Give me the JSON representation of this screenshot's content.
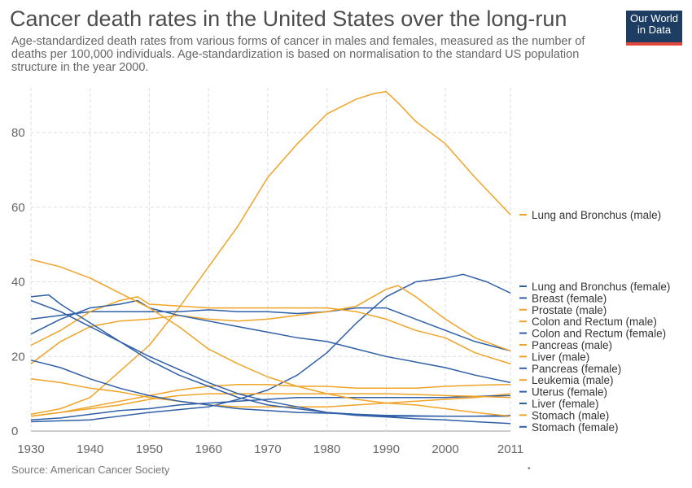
{
  "header": {
    "title": "Cancer death rates in the United States over the long-run",
    "subtitle": "Age-standardized death rates from various forms of cancer in males and females, measured as the number of deaths per 100,000 individuals. Age-standardization is based on normalisation to the standard US population structure in the year 2000.",
    "logo_line1": "Our World",
    "logo_line2": "in Data"
  },
  "footer": {
    "source": "Source: American Cancer Society",
    "dot": "•"
  },
  "colors": {
    "orange": "#f0a427",
    "blue": "#2f5fa7",
    "grid": "#dddddd",
    "logo_bg": "#1d3d63",
    "logo_bar": "#e0463b"
  },
  "chart_data": {
    "type": "line",
    "title": "Cancer death rates in the United States over the long-run",
    "xlim": [
      1930,
      2011
    ],
    "ylim": [
      0,
      92
    ],
    "x_ticks": [
      "1930",
      "1940",
      "1950",
      "1960",
      "1970",
      "1980",
      "1990",
      "2000",
      "2011"
    ],
    "y_ticks": [
      "0",
      "20",
      "40",
      "60",
      "80"
    ],
    "grid": true,
    "legend_position": "right",
    "series": [
      {
        "name": "Lung and Bronchus (male)",
        "color": "#f0a427",
        "points": [
          [
            1930,
            4.5
          ],
          [
            1935,
            6
          ],
          [
            1940,
            9
          ],
          [
            1945,
            16
          ],
          [
            1950,
            23
          ],
          [
            1955,
            33
          ],
          [
            1960,
            44
          ],
          [
            1965,
            55
          ],
          [
            1970,
            68
          ],
          [
            1975,
            77
          ],
          [
            1980,
            85
          ],
          [
            1985,
            89
          ],
          [
            1988,
            90.5
          ],
          [
            1990,
            91
          ],
          [
            1992,
            88
          ],
          [
            1995,
            83
          ],
          [
            2000,
            77
          ],
          [
            2005,
            68
          ],
          [
            2008,
            63
          ],
          [
            2011,
            58
          ]
        ]
      },
      {
        "name": "Lung and Bronchus (female)",
        "color": "#2f5fa7",
        "points": [
          [
            1930,
            2.5
          ],
          [
            1940,
            3
          ],
          [
            1950,
            5
          ],
          [
            1960,
            6.5
          ],
          [
            1965,
            8.5
          ],
          [
            1970,
            11
          ],
          [
            1975,
            15
          ],
          [
            1980,
            21
          ],
          [
            1985,
            29
          ],
          [
            1990,
            36
          ],
          [
            1995,
            40
          ],
          [
            2000,
            41
          ],
          [
            2003,
            42
          ],
          [
            2007,
            40
          ],
          [
            2011,
            37
          ]
        ]
      },
      {
        "name": "Breast (female)",
        "color": "#2f5fa7",
        "points": [
          [
            1930,
            30
          ],
          [
            1935,
            31
          ],
          [
            1940,
            32
          ],
          [
            1945,
            32
          ],
          [
            1950,
            32
          ],
          [
            1955,
            32
          ],
          [
            1960,
            32.5
          ],
          [
            1965,
            32
          ],
          [
            1970,
            32
          ],
          [
            1975,
            31.5
          ],
          [
            1980,
            32
          ],
          [
            1985,
            33
          ],
          [
            1990,
            33
          ],
          [
            1995,
            30
          ],
          [
            2000,
            27
          ],
          [
            2005,
            24
          ],
          [
            2011,
            21.5
          ]
        ]
      },
      {
        "name": "Prostate (male)",
        "color": "#f0a427",
        "points": [
          [
            1930,
            18
          ],
          [
            1935,
            24
          ],
          [
            1940,
            28
          ],
          [
            1945,
            29.5
          ],
          [
            1950,
            30
          ],
          [
            1955,
            31
          ],
          [
            1960,
            30
          ],
          [
            1965,
            29.5
          ],
          [
            1970,
            30
          ],
          [
            1975,
            31
          ],
          [
            1980,
            32
          ],
          [
            1985,
            33.5
          ],
          [
            1990,
            38
          ],
          [
            1992,
            39
          ],
          [
            1995,
            36
          ],
          [
            2000,
            30
          ],
          [
            2005,
            25
          ],
          [
            2011,
            21.5
          ]
        ]
      },
      {
        "name": "Colon and Rectum (male)",
        "color": "#f0a427",
        "points": [
          [
            1930,
            23
          ],
          [
            1935,
            27
          ],
          [
            1940,
            32
          ],
          [
            1945,
            35
          ],
          [
            1948,
            36
          ],
          [
            1950,
            34
          ],
          [
            1955,
            33.5
          ],
          [
            1960,
            33
          ],
          [
            1965,
            33
          ],
          [
            1970,
            33
          ],
          [
            1975,
            33
          ],
          [
            1980,
            33
          ],
          [
            1985,
            32
          ],
          [
            1990,
            30
          ],
          [
            1995,
            27
          ],
          [
            2000,
            25
          ],
          [
            2005,
            21
          ],
          [
            2011,
            18
          ]
        ]
      },
      {
        "name": "Colon and Rectum (female)",
        "color": "#2f5fa7",
        "points": [
          [
            1930,
            26
          ],
          [
            1935,
            30
          ],
          [
            1940,
            33
          ],
          [
            1945,
            34
          ],
          [
            1948,
            35
          ],
          [
            1950,
            33
          ],
          [
            1955,
            31
          ],
          [
            1960,
            29.5
          ],
          [
            1965,
            28
          ],
          [
            1970,
            26.5
          ],
          [
            1975,
            25
          ],
          [
            1980,
            24
          ],
          [
            1985,
            22
          ],
          [
            1990,
            20
          ],
          [
            1995,
            18.5
          ],
          [
            2000,
            17
          ],
          [
            2005,
            15
          ],
          [
            2011,
            13
          ]
        ]
      },
      {
        "name": "Pancreas (male)",
        "color": "#f0a427",
        "points": [
          [
            1930,
            4
          ],
          [
            1935,
            5
          ],
          [
            1940,
            6.5
          ],
          [
            1945,
            8
          ],
          [
            1950,
            9.5
          ],
          [
            1955,
            11
          ],
          [
            1960,
            12
          ],
          [
            1965,
            12.5
          ],
          [
            1970,
            12.5
          ],
          [
            1975,
            12
          ],
          [
            1980,
            12
          ],
          [
            1985,
            11.5
          ],
          [
            1990,
            11.5
          ],
          [
            1995,
            11.5
          ],
          [
            2000,
            12
          ],
          [
            2005,
            12.3
          ],
          [
            2011,
            12.5
          ]
        ]
      },
      {
        "name": "Liver (male)",
        "color": "#f0a427",
        "points": [
          [
            1930,
            14
          ],
          [
            1935,
            13
          ],
          [
            1940,
            11.5
          ],
          [
            1945,
            10.5
          ],
          [
            1950,
            9
          ],
          [
            1955,
            8
          ],
          [
            1960,
            7
          ],
          [
            1965,
            6.5
          ],
          [
            1970,
            6.5
          ],
          [
            1975,
            6.5
          ],
          [
            1980,
            6.5
          ],
          [
            1985,
            7
          ],
          [
            1990,
            7.5
          ],
          [
            1995,
            8
          ],
          [
            2000,
            8.5
          ],
          [
            2005,
            9
          ],
          [
            2011,
            10
          ]
        ]
      },
      {
        "name": "Pancreas (female)",
        "color": "#2f5fa7",
        "points": [
          [
            1930,
            3
          ],
          [
            1935,
            3.5
          ],
          [
            1940,
            4.5
          ],
          [
            1945,
            5.5
          ],
          [
            1950,
            6
          ],
          [
            1955,
            7
          ],
          [
            1960,
            7.5
          ],
          [
            1965,
            8
          ],
          [
            1970,
            8.5
          ],
          [
            1975,
            9
          ],
          [
            1980,
            9
          ],
          [
            1985,
            9
          ],
          [
            1990,
            9
          ],
          [
            1995,
            9
          ],
          [
            2000,
            9
          ],
          [
            2005,
            9.3
          ],
          [
            2011,
            9.5
          ]
        ]
      },
      {
        "name": "Leukemia (male)",
        "color": "#f0a427",
        "points": [
          [
            1930,
            4
          ],
          [
            1935,
            5
          ],
          [
            1940,
            6
          ],
          [
            1945,
            7
          ],
          [
            1950,
            8.5
          ],
          [
            1955,
            9.5
          ],
          [
            1960,
            10
          ],
          [
            1965,
            10
          ],
          [
            1970,
            10
          ],
          [
            1975,
            10
          ],
          [
            1980,
            10
          ],
          [
            1985,
            10
          ],
          [
            1990,
            10
          ],
          [
            1995,
            9.8
          ],
          [
            2000,
            9.5
          ],
          [
            2005,
            9.3
          ],
          [
            2011,
            9
          ]
        ]
      },
      {
        "name": "Uterus (female)",
        "color": "#2f5fa7",
        "points": [
          [
            1930,
            36
          ],
          [
            1933,
            36.5
          ],
          [
            1935,
            34
          ],
          [
            1940,
            29
          ],
          [
            1945,
            24
          ],
          [
            1950,
            19
          ],
          [
            1955,
            15
          ],
          [
            1960,
            12
          ],
          [
            1965,
            9
          ],
          [
            1970,
            7
          ],
          [
            1975,
            6
          ],
          [
            1980,
            5
          ],
          [
            1985,
            4.5
          ],
          [
            1990,
            4.2
          ],
          [
            1995,
            4.1
          ],
          [
            2000,
            4
          ],
          [
            2005,
            4
          ],
          [
            2011,
            4.2
          ]
        ]
      },
      {
        "name": "Liver (female)",
        "color": "#2f5fa7",
        "points": [
          [
            1930,
            19
          ],
          [
            1935,
            17
          ],
          [
            1940,
            14
          ],
          [
            1945,
            11.5
          ],
          [
            1950,
            9.5
          ],
          [
            1955,
            8
          ],
          [
            1960,
            7
          ],
          [
            1965,
            6
          ],
          [
            1970,
            5.5
          ],
          [
            1975,
            5
          ],
          [
            1980,
            4.8
          ],
          [
            1985,
            4.5
          ],
          [
            1990,
            4
          ],
          [
            1995,
            4
          ],
          [
            2000,
            4
          ],
          [
            2005,
            4
          ],
          [
            2011,
            4
          ]
        ]
      },
      {
        "name": "Stomach (male)",
        "color": "#f0a427",
        "points": [
          [
            1930,
            46
          ],
          [
            1935,
            44
          ],
          [
            1940,
            41
          ],
          [
            1945,
            37
          ],
          [
            1950,
            33
          ],
          [
            1955,
            28
          ],
          [
            1960,
            22
          ],
          [
            1965,
            18
          ],
          [
            1970,
            14.5
          ],
          [
            1975,
            12
          ],
          [
            1980,
            10
          ],
          [
            1985,
            8.5
          ],
          [
            1990,
            7.5
          ],
          [
            1995,
            7
          ],
          [
            2000,
            6
          ],
          [
            2005,
            5
          ],
          [
            2011,
            4
          ]
        ]
      },
      {
        "name": "Stomach (female)",
        "color": "#2f5fa7",
        "points": [
          [
            1930,
            35
          ],
          [
            1935,
            32
          ],
          [
            1940,
            28
          ],
          [
            1945,
            24
          ],
          [
            1950,
            20
          ],
          [
            1955,
            16.5
          ],
          [
            1960,
            13
          ],
          [
            1965,
            10
          ],
          [
            1970,
            8
          ],
          [
            1975,
            6.5
          ],
          [
            1980,
            5
          ],
          [
            1985,
            4.2
          ],
          [
            1990,
            3.8
          ],
          [
            1995,
            3.3
          ],
          [
            2000,
            3
          ],
          [
            2005,
            2.5
          ],
          [
            2011,
            2
          ]
        ]
      }
    ]
  }
}
